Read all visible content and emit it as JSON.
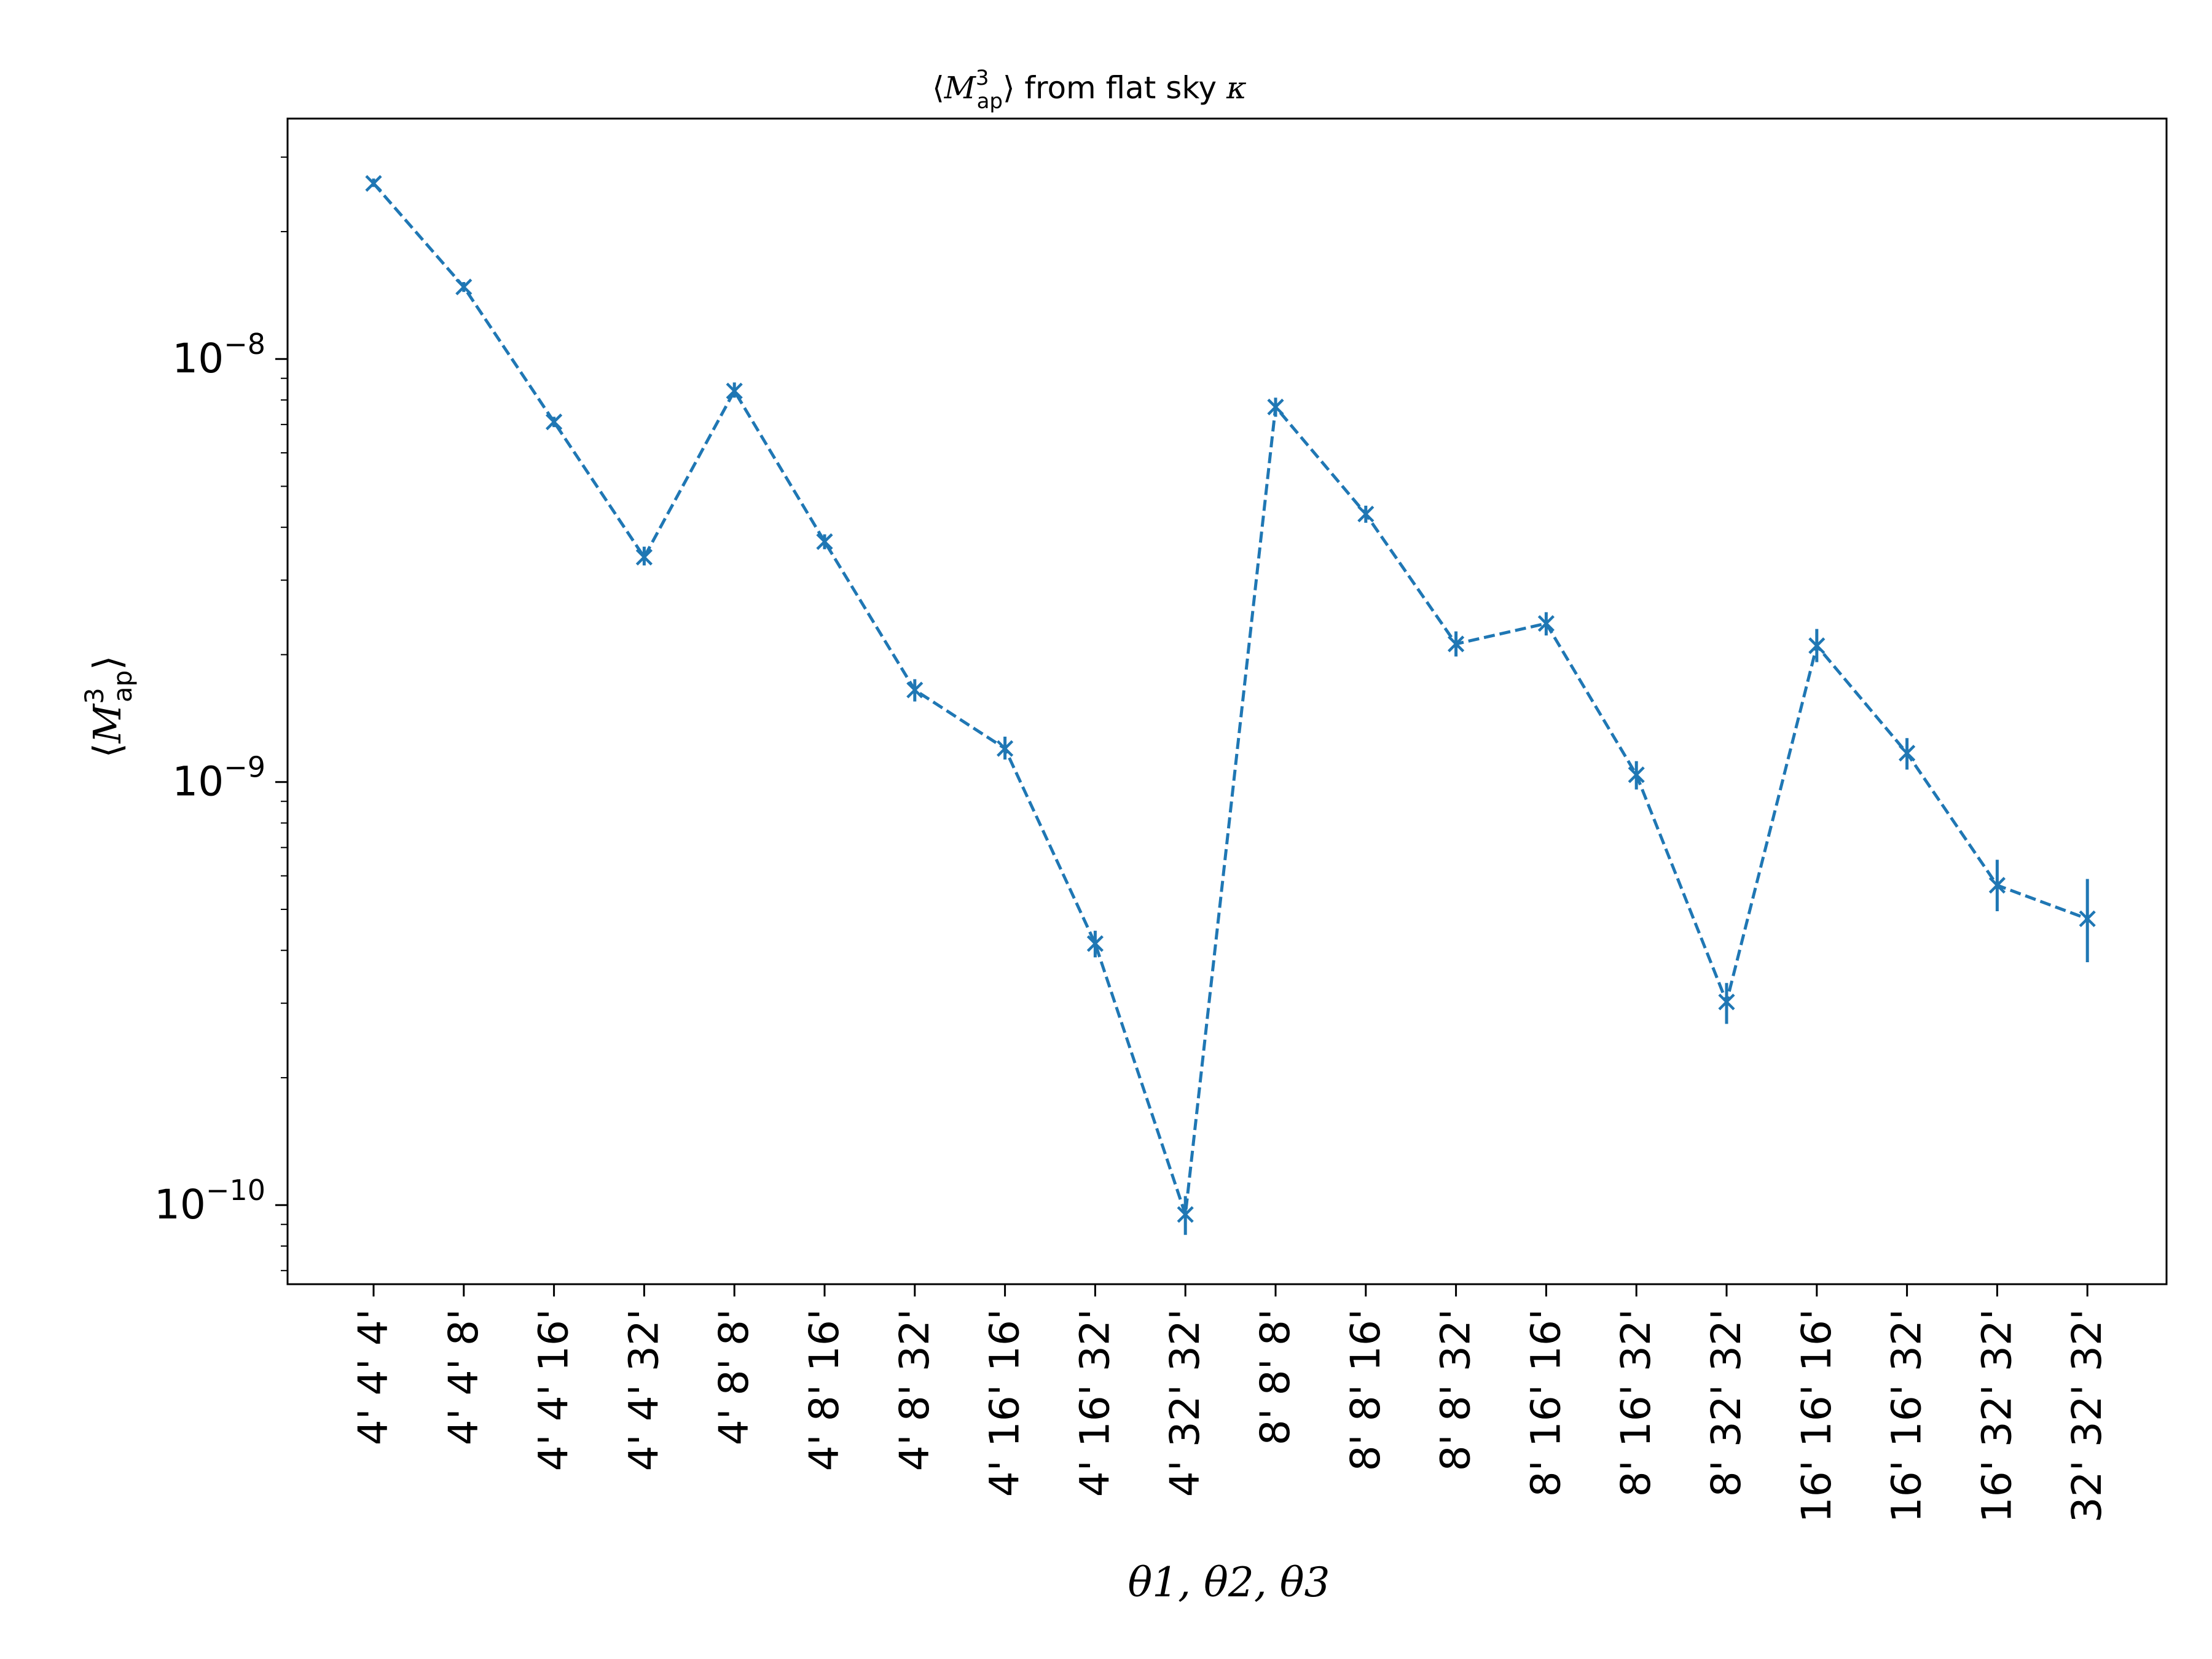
{
  "chart_data": {
    "type": "line",
    "title": {
      "pre": "⟨",
      "var": "M",
      "sup": "3",
      "sub": "ap",
      "post": "⟩ from flat sky ",
      "kappa": "κ"
    },
    "ylabel": {
      "pre": "⟨",
      "var": "M",
      "sup": "3",
      "sub": "ap",
      "post": "⟩"
    },
    "xlabel": "θ1, θ2, θ3",
    "yscale": "log",
    "ylim": [
      6.5e-11,
      3.7e-08
    ],
    "yticks": [
      {
        "value": 1e-08,
        "base": "10",
        "exp": "−8"
      },
      {
        "value": 1e-09,
        "base": "10",
        "exp": "−9"
      },
      {
        "value": 1e-10,
        "base": "10",
        "exp": "−10"
      }
    ],
    "grid": false,
    "categories": [
      "4' 4' 4'",
      "4' 4' 8'",
      "4' 4' 16'",
      "4' 4' 32'",
      "4' 8' 8'",
      "4' 8' 16'",
      "4' 8' 32'",
      "4' 16' 16'",
      "4' 16' 32'",
      "4' 32' 32'",
      "8' 8' 8'",
      "8' 8' 16'",
      "8' 8' 32'",
      "8' 16' 16'",
      "8' 16' 32'",
      "8' 32' 32'",
      "16' 16' 16'",
      "16' 16' 32'",
      "16' 32' 32'",
      "32' 32' 32'"
    ],
    "series": [
      {
        "color": "#1f77b4",
        "linestyle": "dashed",
        "marker": "x",
        "values": [
          2.6e-08,
          1.48e-08,
          7.1e-09,
          3.4e-09,
          8.4e-09,
          3.7e-09,
          1.65e-09,
          1.2e-09,
          4.15e-10,
          9.5e-11,
          7.7e-09,
          4.3e-09,
          2.12e-09,
          2.37e-09,
          1.04e-09,
          3.02e-10,
          2.1e-09,
          1.17e-09,
          5.7e-10,
          4.75e-10
        ],
        "yerr_lo": [
          2.55e-08,
          1.44e-08,
          6.9e-09,
          3.25e-09,
          8.1e-09,
          3.55e-09,
          1.55e-09,
          1.13e-09,
          3.85e-10,
          8.5e-11,
          7.3e-09,
          4.1e-09,
          1.98e-09,
          2.22e-09,
          9.6e-10,
          2.68e-10,
          1.92e-09,
          1.07e-09,
          4.95e-10,
          3.75e-10
        ],
        "yerr_hi": [
          2.67e-08,
          1.52e-08,
          7.3e-09,
          3.6e-09,
          8.8e-09,
          3.85e-09,
          1.75e-09,
          1.28e-09,
          4.45e-10,
          1.05e-10,
          8.1e-09,
          4.5e-09,
          2.27e-09,
          2.52e-09,
          1.12e-09,
          3.35e-10,
          2.3e-09,
          1.27e-09,
          6.55e-10,
          5.9e-10
        ]
      }
    ]
  }
}
